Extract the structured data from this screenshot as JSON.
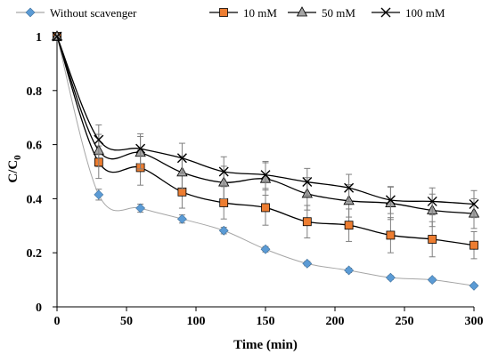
{
  "chart_data": {
    "type": "line",
    "xlabel": "Time (min)",
    "ylabel": "C/C",
    "ylabel_subscript": "0",
    "xlim": [
      0,
      300
    ],
    "ylim": [
      0,
      1
    ],
    "x_ticks": [
      0,
      50,
      100,
      150,
      200,
      250,
      300
    ],
    "y_ticks": [
      0,
      0.2,
      0.4,
      0.6,
      0.8,
      1
    ],
    "y_tick_labels": [
      "0",
      "0.2",
      "0.4",
      "0.6",
      "0.8",
      "1"
    ],
    "grid": false,
    "legend_position": "top",
    "x": [
      0,
      30,
      60,
      90,
      120,
      150,
      180,
      210,
      240,
      270,
      300
    ],
    "series": [
      {
        "name": "Without scavenger",
        "marker": "diamond",
        "color": "#5b9bd5",
        "line_color": "#a6a6a6",
        "values": [
          1,
          0.415,
          0.365,
          0.325,
          0.282,
          0.213,
          0.16,
          0.135,
          0.108,
          0.1,
          0.078
        ],
        "errors": [
          0,
          0.02,
          0.015,
          0.015,
          0.012,
          0.01,
          0.008,
          0.008,
          0.007,
          0.007,
          0.006
        ]
      },
      {
        "name": "10 mM",
        "marker": "square",
        "color": "#ed7d31",
        "line_color": "#000000",
        "values": [
          1,
          0.535,
          0.515,
          0.425,
          0.385,
          0.367,
          0.315,
          0.302,
          0.265,
          0.25,
          0.228
        ],
        "errors": [
          0,
          0.06,
          0.065,
          0.06,
          0.06,
          0.065,
          0.06,
          0.06,
          0.065,
          0.065,
          0.05
        ]
      },
      {
        "name": "50 mM",
        "marker": "triangle",
        "color": "#a5a5a5",
        "line_color": "#000000",
        "values": [
          1,
          0.578,
          0.57,
          0.497,
          0.46,
          0.473,
          0.418,
          0.392,
          0.383,
          0.357,
          0.345
        ],
        "errors": [
          0,
          0.06,
          0.06,
          0.06,
          0.06,
          0.06,
          0.06,
          0.06,
          0.06,
          0.06,
          0.055
        ]
      },
      {
        "name": "100 mM",
        "marker": "x",
        "color": "#000000",
        "line_color": "#000000",
        "values": [
          1,
          0.618,
          0.585,
          0.55,
          0.5,
          0.488,
          0.462,
          0.44,
          0.395,
          0.39,
          0.38
        ],
        "errors": [
          0,
          0.055,
          0.055,
          0.055,
          0.055,
          0.05,
          0.05,
          0.05,
          0.05,
          0.05,
          0.05
        ]
      }
    ]
  }
}
